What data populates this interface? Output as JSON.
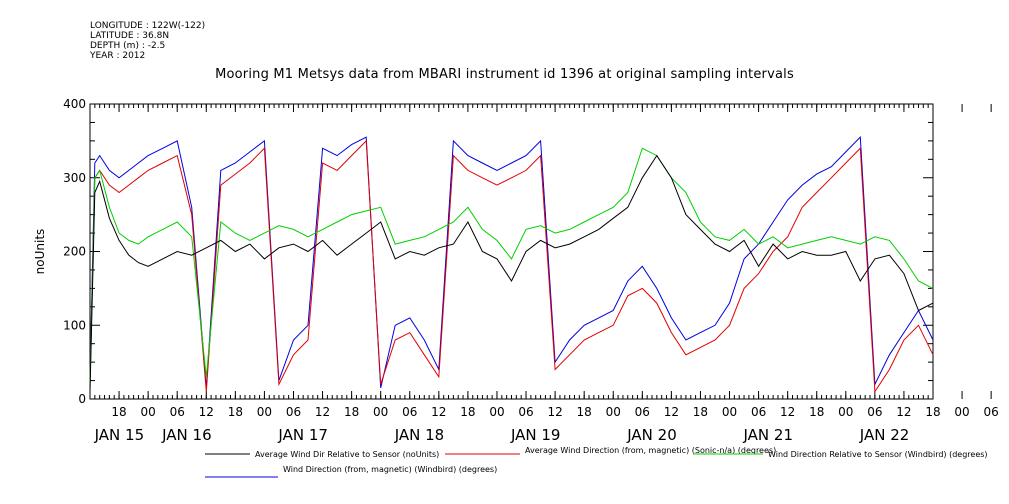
{
  "header": {
    "longitude": "LONGITUDE : 122W(-122)",
    "latitude": "LATITUDE : 36.8N",
    "depth": "DEPTH (m) : -2.5",
    "year": "YEAR : 2012",
    "title": "Mooring M1 Metsys data from MBARI instrument id 1396 at original sampling intervals"
  },
  "chart_data": {
    "type": "line",
    "title": "Mooring M1 Metsys data from MBARI instrument id 1396 at original sampling intervals",
    "ylabel": "noUnits",
    "xlabel": "",
    "ylim": [
      0,
      400
    ],
    "yticks": [
      "0",
      "100",
      "200",
      "300",
      "400"
    ],
    "xlim_hours_from_jan15_00": [
      12.0,
      186.0
    ],
    "hour_ticks": [
      "18",
      "00",
      "06",
      "12",
      "18",
      "00",
      "06",
      "12",
      "18",
      "00",
      "06",
      "12",
      "18",
      "00",
      "06",
      "12",
      "18",
      "00",
      "06",
      "12",
      "18",
      "00",
      "06",
      "12",
      "18",
      "00",
      "06",
      "12",
      "18",
      "00",
      "06"
    ],
    "date_labels": [
      "JAN 15",
      "JAN 16",
      "JAN 17",
      "JAN 18",
      "JAN 19",
      "JAN 20",
      "JAN 21",
      "JAN 22"
    ],
    "grid": false,
    "legend_position": "bottom",
    "colors": {
      "relative_sensor": "#000000",
      "sonic_direction": "#e00000",
      "windbird_relative": "#00d000",
      "windbird_direction": "#0000e0"
    },
    "series": [
      {
        "name": "Average Wind Dir Relative to Sensor (noUnits)",
        "color": "#000000",
        "x": [
          12,
          13,
          14,
          16,
          18,
          20,
          22,
          24,
          27,
          30,
          33,
          36,
          39,
          42,
          45,
          48,
          51,
          54,
          57,
          60,
          63,
          66,
          69,
          72,
          75,
          78,
          81,
          84,
          87,
          90,
          93,
          96,
          99,
          102,
          105,
          108,
          111,
          114,
          117,
          120,
          123,
          126,
          129,
          132,
          135,
          138,
          141,
          144,
          147,
          150,
          153,
          156,
          159,
          162,
          165,
          168,
          171,
          174,
          177,
          180,
          183,
          186
        ],
        "y": [
          10,
          280,
          295,
          245,
          215,
          195,
          185,
          180,
          190,
          200,
          195,
          205,
          215,
          200,
          210,
          190,
          205,
          210,
          200,
          215,
          195,
          210,
          225,
          240,
          190,
          200,
          195,
          205,
          210,
          240,
          200,
          190,
          160,
          200,
          215,
          205,
          210,
          220,
          230,
          245,
          260,
          300,
          330,
          300,
          250,
          230,
          210,
          200,
          215,
          180,
          210,
          190,
          200,
          195,
          195,
          200,
          160,
          190,
          195,
          170,
          120,
          130
        ]
      },
      {
        "name": "Average Wind Direction (from, magnetic) (Sonic-n/a) (degrees)",
        "color": "#e00000",
        "x": [
          12,
          13,
          14,
          16,
          18,
          20,
          22,
          24,
          27,
          30,
          33,
          36,
          39,
          42,
          45,
          48,
          51,
          54,
          57,
          60,
          63,
          66,
          69,
          72,
          75,
          78,
          81,
          84,
          87,
          90,
          93,
          96,
          99,
          102,
          105,
          108,
          111,
          114,
          117,
          120,
          123,
          126,
          129,
          132,
          135,
          138,
          141,
          144,
          147,
          150,
          153,
          156,
          159,
          162,
          165,
          168,
          171,
          174,
          177,
          180,
          183,
          186
        ],
        "y": [
          20,
          300,
          310,
          290,
          280,
          290,
          300,
          310,
          320,
          330,
          250,
          10,
          290,
          305,
          320,
          340,
          20,
          60,
          80,
          320,
          310,
          330,
          350,
          20,
          80,
          90,
          60,
          30,
          330,
          310,
          300,
          290,
          300,
          310,
          330,
          40,
          60,
          80,
          90,
          100,
          140,
          150,
          130,
          90,
          60,
          70,
          80,
          100,
          150,
          170,
          200,
          220,
          260,
          280,
          300,
          320,
          340,
          10,
          40,
          80,
          100,
          60
        ]
      },
      {
        "name": "Wind Direction Relative to Sensor (Windbird) (degrees)",
        "color": "#00d000",
        "x": [
          12,
          13,
          14,
          16,
          18,
          20,
          22,
          24,
          27,
          30,
          33,
          36,
          39,
          42,
          45,
          48,
          51,
          54,
          57,
          60,
          63,
          66,
          69,
          72,
          75,
          78,
          81,
          84,
          87,
          90,
          93,
          96,
          99,
          102,
          105,
          108,
          111,
          114,
          117,
          120,
          123,
          126,
          129,
          132,
          135,
          138,
          141,
          144,
          147,
          150,
          153,
          156,
          159,
          162,
          165,
          168,
          171,
          174,
          177,
          180,
          183,
          186
        ],
        "y": [
          20,
          300,
          310,
          260,
          225,
          215,
          210,
          220,
          230,
          240,
          220,
          30,
          240,
          225,
          215,
          225,
          235,
          230,
          220,
          230,
          240,
          250,
          255,
          260,
          210,
          215,
          220,
          230,
          240,
          260,
          230,
          215,
          190,
          230,
          235,
          225,
          230,
          240,
          250,
          260,
          280,
          340,
          330,
          300,
          280,
          240,
          220,
          215,
          230,
          210,
          220,
          205,
          210,
          215,
          220,
          215,
          210,
          220,
          215,
          190,
          160,
          150
        ]
      },
      {
        "name": "Wind Direction (from, magnetic) (Windbird) (degrees)",
        "color": "#0000e0",
        "x": [
          12,
          13,
          14,
          16,
          18,
          20,
          22,
          24,
          27,
          30,
          33,
          36,
          39,
          42,
          45,
          48,
          51,
          54,
          57,
          60,
          63,
          66,
          69,
          72,
          75,
          78,
          81,
          84,
          87,
          90,
          93,
          96,
          99,
          102,
          105,
          108,
          111,
          114,
          117,
          120,
          123,
          126,
          129,
          132,
          135,
          138,
          141,
          144,
          147,
          150,
          153,
          156,
          159,
          162,
          165,
          168,
          171,
          174,
          177,
          180,
          183,
          186
        ],
        "y": [
          30,
          320,
          330,
          310,
          300,
          310,
          320,
          330,
          340,
          350,
          260,
          15,
          310,
          320,
          335,
          350,
          25,
          80,
          100,
          340,
          330,
          345,
          355,
          15,
          100,
          110,
          80,
          40,
          350,
          330,
          320,
          310,
          320,
          330,
          350,
          50,
          80,
          100,
          110,
          120,
          160,
          180,
          150,
          110,
          80,
          90,
          100,
          130,
          190,
          210,
          240,
          270,
          290,
          305,
          315,
          335,
          355,
          20,
          60,
          90,
          120,
          80
        ]
      }
    ]
  }
}
